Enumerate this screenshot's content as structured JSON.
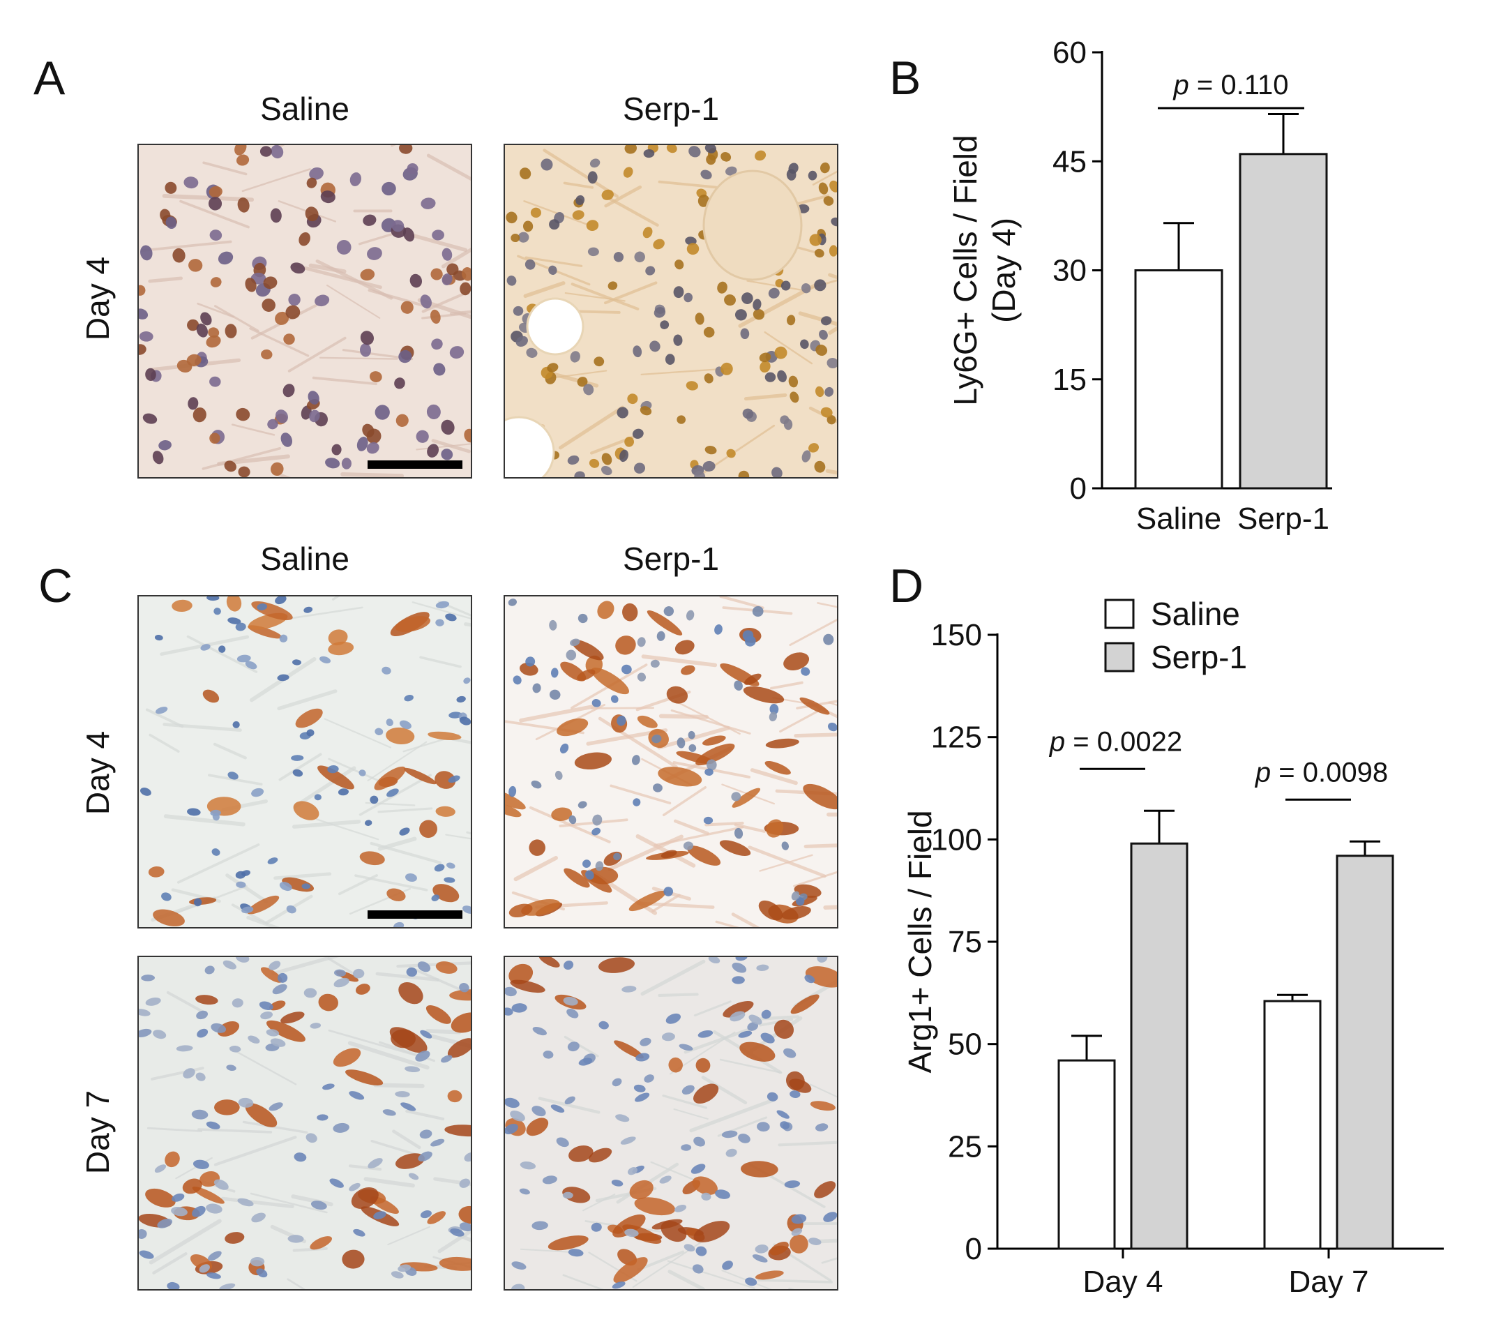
{
  "panels": {
    "A": {
      "letter": "A",
      "col_labels": [
        "Saline",
        "Serp-1"
      ],
      "row_labels": [
        "Day 4"
      ],
      "images": [
        {
          "name": "micrograph-a-saline-day4",
          "stain": "ly6g-light",
          "bg": "#efe2da"
        },
        {
          "name": "micrograph-a-serp1-day4",
          "stain": "ly6g-dense",
          "bg": "#f1dfc6"
        }
      ]
    },
    "B": {
      "letter": "B"
    },
    "C": {
      "letter": "C",
      "col_labels": [
        "Saline",
        "Serp-1"
      ],
      "row_labels": [
        "Day 4",
        "Day 7"
      ],
      "images": [
        {
          "name": "micrograph-c-saline-day4",
          "stain": "arg1-sparse",
          "bg": "#ecefec"
        },
        {
          "name": "micrograph-c-serp1-day4",
          "stain": "arg1-dense",
          "bg": "#f7f3f0"
        },
        {
          "name": "micrograph-c-saline-day7",
          "stain": "arg1-mid",
          "bg": "#e8ebe8"
        },
        {
          "name": "micrograph-c-serp1-day7",
          "stain": "arg1-mid",
          "bg": "#ebe8e6"
        }
      ]
    },
    "D": {
      "letter": "D"
    }
  },
  "chart_data": [
    {
      "panel": "B",
      "type": "bar",
      "categories": [
        "Saline",
        "Serp-1"
      ],
      "values": [
        30,
        46
      ],
      "errors": [
        6.5,
        5.5
      ],
      "bar_colors": [
        "#ffffff",
        "#d3d3d3"
      ],
      "ylabel": "Ly6G+ Cells / Field",
      "ylabel2": "(Day 4)",
      "ylim": [
        0,
        60
      ],
      "yticks": [
        0,
        15,
        30,
        45,
        60
      ],
      "annotations": [
        {
          "prefix": "p",
          "text": " = 0.110",
          "between": [
            0,
            1
          ]
        }
      ]
    },
    {
      "panel": "D",
      "type": "bar",
      "categories": [
        "Day 4",
        "Day 7"
      ],
      "series": [
        {
          "name": "Saline",
          "values": [
            46,
            60.5
          ],
          "errors": [
            6,
            1.5
          ],
          "color": "#ffffff"
        },
        {
          "name": "Serp-1",
          "values": [
            99,
            96
          ],
          "errors": [
            8,
            3.5
          ],
          "color": "#d3d3d3"
        }
      ],
      "ylabel": "Arg1+ Cells / Field",
      "ylim": [
        0,
        150
      ],
      "yticks": [
        0,
        25,
        50,
        75,
        100,
        125,
        150
      ],
      "legend_position": "top-left",
      "annotations": [
        {
          "prefix": "p",
          "text": " = 0.0022",
          "group": 0
        },
        {
          "prefix": "p",
          "text": " = 0.0098",
          "group": 1
        }
      ]
    }
  ]
}
